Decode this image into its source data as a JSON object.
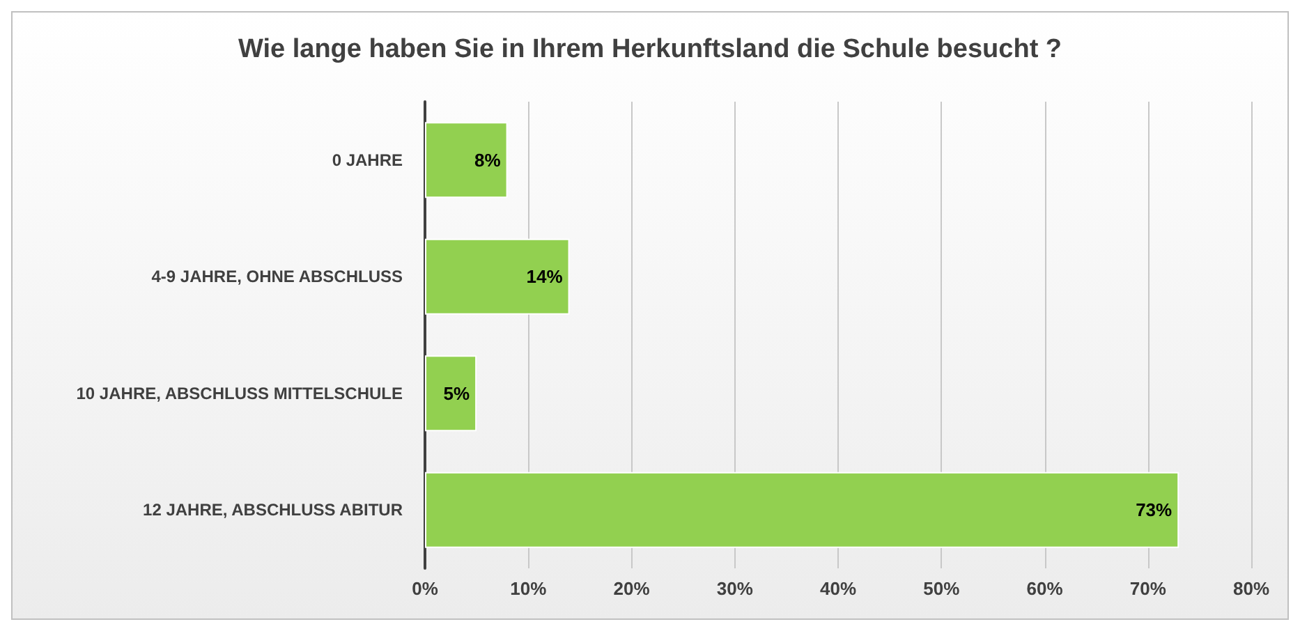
{
  "chart_data": {
    "type": "bar",
    "orientation": "horizontal",
    "title": "Wie lange haben Sie in Ihrem Herkunftsland die Schule besucht ?",
    "categories": [
      "0 JAHRE",
      "4-9 JAHRE, OHNE ABSCHLUSS",
      "10 JAHRE, ABSCHLUSS MITTELSCHULE",
      "12 JAHRE, ABSCHLUSS ABITUR"
    ],
    "values": [
      8,
      14,
      5,
      73
    ],
    "value_labels": [
      "8%",
      "14%",
      "5%",
      "73%"
    ],
    "color": "#92d050",
    "xlim": [
      0,
      80
    ],
    "xticks": [
      {
        "value": 0,
        "label": "0%"
      },
      {
        "value": 10,
        "label": "10%"
      },
      {
        "value": 20,
        "label": "20%"
      },
      {
        "value": 30,
        "label": "30%"
      },
      {
        "value": 40,
        "label": "40%"
      },
      {
        "value": 50,
        "label": "50%"
      },
      {
        "value": 60,
        "label": "60%"
      },
      {
        "value": 70,
        "label": "70%"
      },
      {
        "value": 80,
        "label": "80%"
      }
    ],
    "grid": "x"
  }
}
